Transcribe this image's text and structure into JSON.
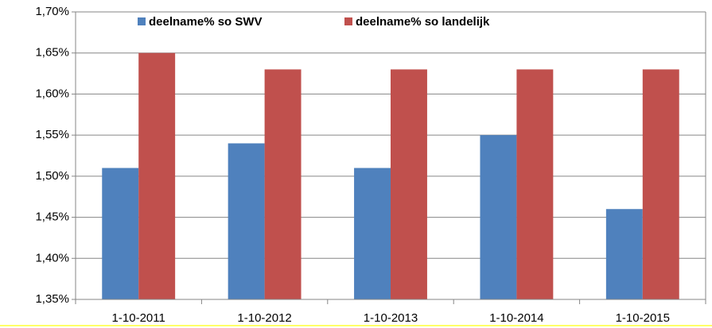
{
  "chart_data": {
    "type": "bar",
    "categories": [
      "1-10-2011",
      "1-10-2012",
      "1-10-2013",
      "1-10-2014",
      "1-10-2015"
    ],
    "series": [
      {
        "name": "deelname% so SWV",
        "color": "#4f81bd",
        "values": [
          1.51,
          1.54,
          1.51,
          1.55,
          1.46
        ]
      },
      {
        "name": "deelname% so landelijk",
        "color": "#c0504d",
        "values": [
          1.65,
          1.63,
          1.63,
          1.63,
          1.63
        ]
      }
    ],
    "ylim": [
      1.35,
      1.7
    ],
    "yticks": [
      {
        "value": 1.35,
        "label": "1,35%"
      },
      {
        "value": 1.4,
        "label": "1,40%"
      },
      {
        "value": 1.45,
        "label": "1,45%"
      },
      {
        "value": 1.5,
        "label": "1,50%"
      },
      {
        "value": 1.55,
        "label": "1,55%"
      },
      {
        "value": 1.6,
        "label": "1,60%"
      },
      {
        "value": 1.65,
        "label": "1,65%"
      },
      {
        "value": 1.7,
        "label": "1,70%"
      }
    ],
    "grid": true,
    "legend": "top"
  }
}
